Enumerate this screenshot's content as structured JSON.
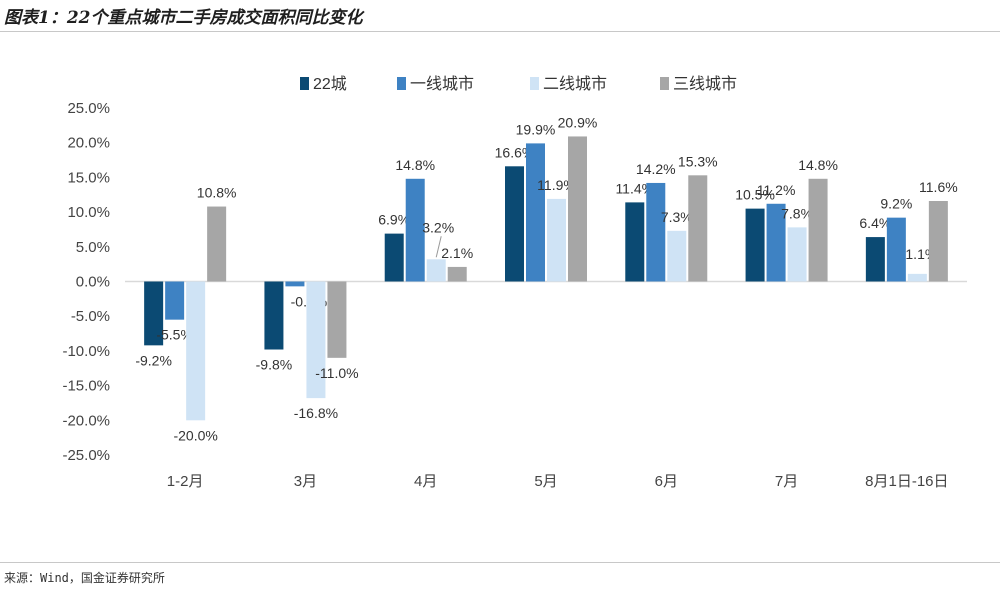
{
  "title": "图表1：22个重点城市二手房成交面积同比变化",
  "source": "来源：Wind，国金证券研究所",
  "colors": {
    "s0": "#0b4a73",
    "s1": "#3e82c3",
    "s2": "#cfe3f5",
    "s3": "#a6a6a6",
    "axis": "#d9d9d9"
  },
  "chart_data": {
    "type": "bar",
    "title": "",
    "xlabel": "",
    "ylabel": "",
    "ylim": [
      -25,
      25
    ],
    "yticks": [
      "25.0%",
      "20.0%",
      "15.0%",
      "10.0%",
      "5.0%",
      "0.0%",
      "-5.0%",
      "-10.0%",
      "-15.0%",
      "-20.0%",
      "-25.0%"
    ],
    "categories": [
      "1-2月",
      "3月",
      "4月",
      "5月",
      "6月",
      "7月",
      "8月1日-16日"
    ],
    "legend_position": "top-center",
    "series": [
      {
        "name": "22城",
        "values": [
          -9.2,
          -9.8,
          6.9,
          16.6,
          11.4,
          10.5,
          6.4
        ],
        "labels": [
          "-9.2%",
          "-9.8%",
          "6.9%",
          "16.6%",
          "11.4%",
          "10.5%",
          "6.4%"
        ]
      },
      {
        "name": "一线城市",
        "values": [
          -5.5,
          -0.7,
          14.8,
          19.9,
          14.2,
          11.2,
          9.2
        ],
        "labels": [
          "-5.5%",
          "-0.7%",
          "14.8%",
          "19.9%",
          "14.2%",
          "11.2%",
          "9.2%"
        ]
      },
      {
        "name": "二线城市",
        "values": [
          -20.0,
          -16.8,
          3.2,
          11.9,
          7.3,
          7.8,
          1.1
        ],
        "labels": [
          "-20.0%",
          "-16.8%",
          "3.2%",
          "11.9%",
          "7.3%",
          "7.8%",
          "1.1%"
        ]
      },
      {
        "name": "三线城市",
        "values": [
          10.8,
          -11.0,
          2.1,
          20.9,
          15.3,
          14.8,
          11.6
        ],
        "labels": [
          "10.8%",
          "-11.0%",
          "2.1%",
          "20.9%",
          "15.3%",
          "14.8%",
          "11.6%"
        ]
      }
    ]
  }
}
